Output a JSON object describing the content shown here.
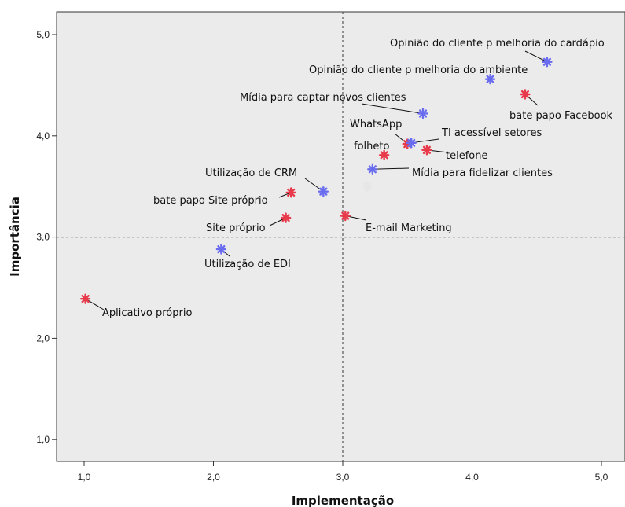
{
  "chart_data": {
    "type": "scatter",
    "title": "",
    "xlabel": "Implementação",
    "ylabel": "Importância",
    "xlim": [
      0.8,
      5.2
    ],
    "ylim": [
      0.8,
      5.25
    ],
    "xticks": [
      "1,0",
      "2,0",
      "3,0",
      "4,0",
      "5,0"
    ],
    "xtick_values": [
      1,
      2,
      3,
      4,
      5
    ],
    "yticks": [
      "1,0",
      "2,0",
      "3,0",
      "4,0",
      "5,0"
    ],
    "ytick_values": [
      1,
      2,
      3,
      4,
      5
    ],
    "reference_lines": {
      "x": 3.0,
      "y": 3.0,
      "style": "dashed"
    },
    "grid": false,
    "legend": "none",
    "colors": {
      "red": "#e83a4a",
      "blue": "#6a6cf0",
      "gray": "#e6e6e6",
      "plot_bg": "#ebebeb"
    },
    "points": [
      {
        "label": "Opinião do cliente p melhoria do cardápio",
        "x": 4.58,
        "y": 4.73,
        "color": "blue"
      },
      {
        "label": "Opinião do cliente p melhoria do ambiente",
        "x": 4.14,
        "y": 4.56,
        "color": "blue"
      },
      {
        "label": "bate papo Facebook",
        "x": 4.41,
        "y": 4.41,
        "color": "red"
      },
      {
        "label": "Mídia para captar novos clientes",
        "x": 3.62,
        "y": 4.22,
        "color": "blue"
      },
      {
        "label": "WhatsApp",
        "x": 3.5,
        "y": 3.92,
        "color": "red"
      },
      {
        "label": "TI acessível setores",
        "x": 3.53,
        "y": 3.93,
        "color": "blue"
      },
      {
        "label": "telefone",
        "x": 3.65,
        "y": 3.86,
        "color": "red"
      },
      {
        "label": "folheto",
        "x": 3.32,
        "y": 3.81,
        "color": "red"
      },
      {
        "label": "Mídia para fidelizar clientes",
        "x": 3.23,
        "y": 3.67,
        "color": "blue"
      },
      {
        "label": "",
        "x": 3.19,
        "y": 3.5,
        "color": "gray"
      },
      {
        "label": "Utilização de CRM",
        "x": 2.85,
        "y": 3.45,
        "color": "blue"
      },
      {
        "label": "bate papo Site próprio",
        "x": 2.6,
        "y": 3.44,
        "color": "red"
      },
      {
        "label": "E-mail Marketing",
        "x": 3.02,
        "y": 3.21,
        "color": "red"
      },
      {
        "label": "Site próprio",
        "x": 2.56,
        "y": 3.19,
        "color": "red"
      },
      {
        "label": "Utilização de EDI",
        "x": 2.06,
        "y": 2.88,
        "color": "blue"
      },
      {
        "label": "Aplicativo próprio",
        "x": 1.01,
        "y": 2.39,
        "color": "red"
      }
    ]
  }
}
